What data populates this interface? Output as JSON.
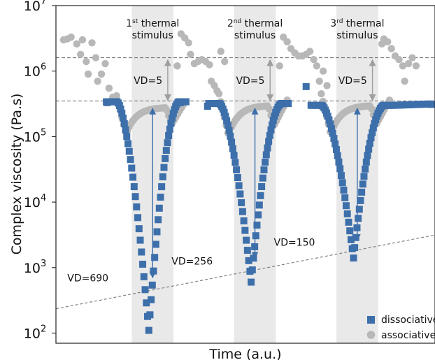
{
  "chart_data": {
    "type": "scatter",
    "title": "",
    "xlabel": "Time (a.u.)",
    "ylabel": "Complex viscosity (Pa.s)",
    "yscale": "log",
    "ylim": [
      70,
      10000000
    ],
    "xlim": [
      0,
      100
    ],
    "y_ticks": [
      {
        "base": "10",
        "exp": "2"
      },
      {
        "base": "10",
        "exp": "3"
      },
      {
        "base": "10",
        "exp": "4"
      },
      {
        "base": "10",
        "exp": "5"
      },
      {
        "base": "10",
        "exp": "6"
      },
      {
        "base": "10",
        "exp": "7"
      }
    ],
    "grid": false,
    "legend_position": "bottom-right",
    "colors": {
      "dissociative": "#3d6fab",
      "associative": "#b8b8b8",
      "shade": "#e9e9e9",
      "arrow_blue": "#3d6fab",
      "arrow_grey": "#9e9e9e",
      "dashed": "#777777"
    },
    "stimuli": [
      {
        "x0": 20,
        "x1": 31,
        "label_pre": "1",
        "label_sup": "st",
        "label_post": " thermal",
        "label_line2": "stimulus"
      },
      {
        "x0": 47,
        "x1": 58,
        "label_pre": "2",
        "label_sup": "nd",
        "label_post": " thermal",
        "label_line2": "stimulus"
      },
      {
        "x0": 74,
        "x1": 85,
        "label_pre": "3",
        "label_sup": "rd",
        "label_post": " thermal",
        "label_line2": "stimulus"
      }
    ],
    "reference_lines": [
      {
        "y": 1600000,
        "style": "dashed"
      },
      {
        "y": 350000,
        "style": "dashed"
      }
    ],
    "trend_line": {
      "x": [
        0,
        100
      ],
      "y": [
        235,
        3150
      ]
    },
    "annotations": [
      {
        "text": "VD=690",
        "x": 3,
        "y": 700
      },
      {
        "text": "VD=256",
        "x": 30.5,
        "y": 1250
      },
      {
        "text": "VD=150",
        "x": 57.5,
        "y": 2450
      },
      {
        "text": "VD=5",
        "x": 20.5,
        "y": 720000
      },
      {
        "text": "VD=5",
        "x": 47.5,
        "y": 720000
      },
      {
        "text": "VD=5",
        "x": 74.5,
        "y": 720000
      }
    ],
    "blue_arrows": [
      {
        "x": 25.5,
        "y_top": 270000,
        "y_bottom": 700
      },
      {
        "x": 52.5,
        "y_top": 270000,
        "y_bottom": 1400
      },
      {
        "x": 79.5,
        "y_top": 270000,
        "y_bottom": 2600
      }
    ],
    "grey_arrows": [
      {
        "x": 29.5,
        "y_top": 1600000,
        "y_bottom": 330000
      },
      {
        "x": 56.5,
        "y_top": 1600000,
        "y_bottom": 330000
      },
      {
        "x": 83.5,
        "y_top": 1600000,
        "y_bottom": 330000
      }
    ],
    "series": [
      {
        "name": "dissociative",
        "marker": "square",
        "cycles": [
          {
            "x_start": 14.5,
            "x_min": 24.5,
            "x_end": 32.5,
            "baseline": 340000,
            "min": 110
          },
          {
            "x_start": 41.5,
            "x_min": 51.5,
            "x_end": 59.5,
            "baseline": 320000,
            "min": 600
          },
          {
            "x_start": 68.5,
            "x_min": 78.5,
            "x_end": 86.5,
            "baseline": 300000,
            "min": 1400
          }
        ],
        "extra_points": [
          {
            "x": 13.5,
            "y": 330000
          },
          {
            "x": 32.8,
            "y": 330000
          },
          {
            "x": 59.8,
            "y": 320000
          },
          {
            "x": 86.8,
            "y": 300000
          },
          {
            "x": 99,
            "y": 310000
          },
          {
            "x": 66,
            "y": 580000
          },
          {
            "x": 40,
            "y": 290000
          }
        ]
      },
      {
        "name": "associative",
        "marker": "circle",
        "cycles": [
          {
            "x_start": 16,
            "x_dip": 18.5,
            "x_flat_end": 29,
            "x_dip2": 30.5,
            "x_end": 34,
            "baseline": 280000,
            "dip": 110000
          },
          {
            "x_start": 43,
            "x_dip": 45.5,
            "x_flat_end": 56,
            "x_dip2": 57.5,
            "x_end": 61,
            "baseline": 300000,
            "dip": 105000
          },
          {
            "x_start": 70,
            "x_dip": 72.5,
            "x_flat_end": 83,
            "x_dip2": 84.5,
            "x_end": 88,
            "baseline": 300000,
            "dip": 110000
          }
        ],
        "scattered_points": [
          {
            "x": 2,
            "y": 3000000
          },
          {
            "x": 3,
            "y": 3100000
          },
          {
            "x": 4,
            "y": 3300000
          },
          {
            "x": 5.5,
            "y": 2600000
          },
          {
            "x": 6.5,
            "y": 1800000
          },
          {
            "x": 7,
            "y": 3000000
          },
          {
            "x": 8,
            "y": 1400000
          },
          {
            "x": 8.5,
            "y": 900000
          },
          {
            "x": 9.5,
            "y": 2700000
          },
          {
            "x": 10.5,
            "y": 1600000
          },
          {
            "x": 11,
            "y": 700000
          },
          {
            "x": 12,
            "y": 900000
          },
          {
            "x": 13,
            "y": 1300000
          },
          {
            "x": 14,
            "y": 550000
          },
          {
            "x": 15,
            "y": 400000
          },
          {
            "x": 32,
            "y": 1200000
          },
          {
            "x": 33,
            "y": 3700000
          },
          {
            "x": 34,
            "y": 3200000
          },
          {
            "x": 35,
            "y": 2700000
          },
          {
            "x": 35.5,
            "y": 1800000
          },
          {
            "x": 36.5,
            "y": 1300000
          },
          {
            "x": 37.5,
            "y": 1400000
          },
          {
            "x": 38.5,
            "y": 1500000
          },
          {
            "x": 39.5,
            "y": 1400000
          },
          {
            "x": 40.5,
            "y": 1250000
          },
          {
            "x": 41,
            "y": 700000
          },
          {
            "x": 41.8,
            "y": 600000
          },
          {
            "x": 42.5,
            "y": 500000
          },
          {
            "x": 43.5,
            "y": 2000000
          },
          {
            "x": 44.5,
            "y": 1400000
          },
          {
            "x": 59,
            "y": 1200000
          },
          {
            "x": 60,
            "y": 3300000
          },
          {
            "x": 61,
            "y": 2800000
          },
          {
            "x": 62,
            "y": 2200000
          },
          {
            "x": 63,
            "y": 1900000
          },
          {
            "x": 64,
            "y": 1700000
          },
          {
            "x": 65,
            "y": 1700000
          },
          {
            "x": 66,
            "y": 1800000
          },
          {
            "x": 67,
            "y": 2000000
          },
          {
            "x": 68,
            "y": 1500000
          },
          {
            "x": 68.8,
            "y": 1200000
          },
          {
            "x": 69.5,
            "y": 700000
          },
          {
            "x": 70.5,
            "y": 1000000
          },
          {
            "x": 71.5,
            "y": 600000
          },
          {
            "x": 86,
            "y": 2600000
          },
          {
            "x": 86.5,
            "y": 3100000
          },
          {
            "x": 87.5,
            "y": 2800000
          },
          {
            "x": 88.5,
            "y": 2200000
          },
          {
            "x": 89.5,
            "y": 1700000
          },
          {
            "x": 90.5,
            "y": 1500000
          },
          {
            "x": 91.5,
            "y": 1200000
          },
          {
            "x": 92,
            "y": 700000
          },
          {
            "x": 93,
            "y": 1300000
          },
          {
            "x": 94,
            "y": 1600000
          },
          {
            "x": 95,
            "y": 1200000
          }
        ]
      }
    ]
  }
}
